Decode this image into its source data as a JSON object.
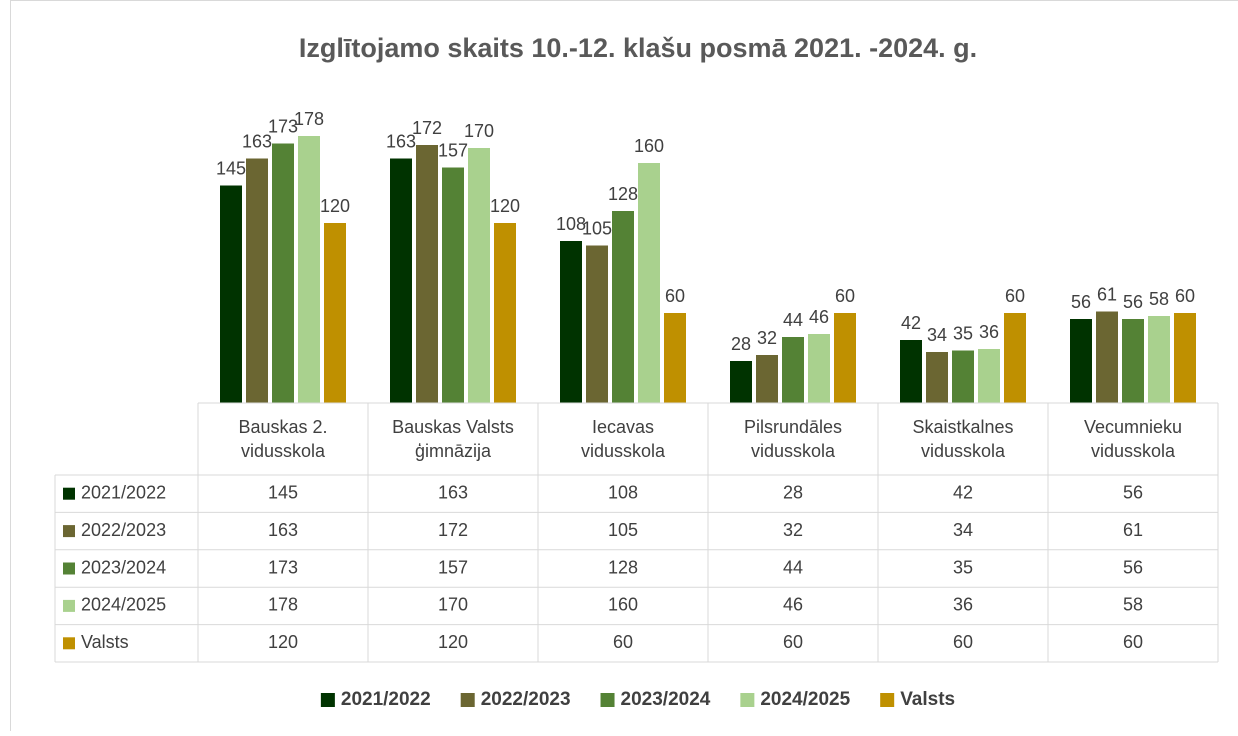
{
  "chart_data": {
    "type": "bar",
    "title": "Izglītojamo skaits 10.-12. klašu posmā 2021. -2024. g.",
    "categories": [
      "Bauskas 2. vidusskola",
      "Bauskas Valsts ģimnāzija",
      "Iecavas vidusskola",
      "Pilsrundāles vidusskola",
      "Skaistkalnes vidusskola",
      "Vecumnieku vidusskola"
    ],
    "series": [
      {
        "name": "2021/2022",
        "color": "#003300",
        "values": [
          145,
          163,
          108,
          28,
          42,
          56
        ]
      },
      {
        "name": "2022/2023",
        "color": "#6b6632",
        "values": [
          163,
          172,
          105,
          32,
          34,
          61
        ]
      },
      {
        "name": "2023/2024",
        "color": "#548235",
        "values": [
          173,
          157,
          128,
          44,
          35,
          56
        ]
      },
      {
        "name": "2024/2025",
        "color": "#a9d18e",
        "values": [
          178,
          170,
          160,
          46,
          36,
          58
        ]
      },
      {
        "name": "Valsts",
        "color": "#bf9000",
        "values": [
          120,
          120,
          60,
          60,
          60,
          60
        ]
      }
    ],
    "ylim": [
      0,
      200
    ],
    "data_table": true,
    "legend": "bottom"
  }
}
